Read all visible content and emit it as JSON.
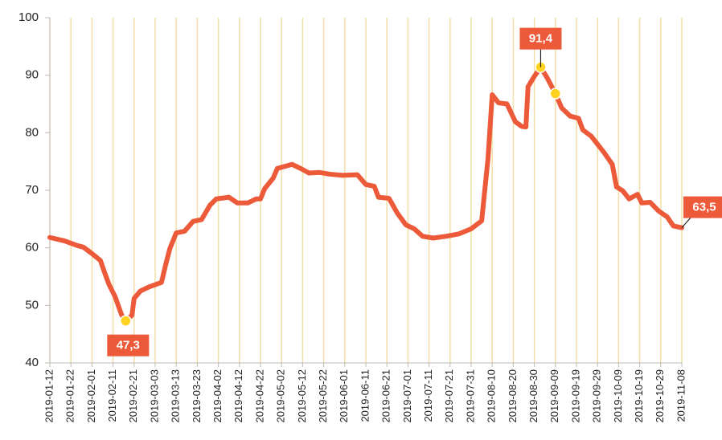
{
  "chart_data": {
    "type": "line",
    "xlim": [
      "2019-01-12",
      "2019-11-08"
    ],
    "xticks": [
      "2019-01-12",
      "2019-01-22",
      "2019-02-01",
      "2019-02-11",
      "2019-02-21",
      "2019-03-03",
      "2019-03-13",
      "2019-03-23",
      "2019-04-02",
      "2019-04-12",
      "2019-04-22",
      "2019-05-02",
      "2019-05-12",
      "2019-05-22",
      "2019-06-01",
      "2019-06-11",
      "2019-06-21",
      "2019-07-01",
      "2019-07-11",
      "2019-07-21",
      "2019-07-31",
      "2019-08-10",
      "2019-08-20",
      "2019-08-30",
      "2019-09-09",
      "2019-09-19",
      "2019-09-29",
      "2019-10-09",
      "2019-10-19",
      "2019-10-29",
      "2019-11-08"
    ],
    "ylim": [
      40,
      100
    ],
    "yticks": [
      40,
      50,
      60,
      70,
      80,
      90,
      100
    ],
    "grid": true,
    "grid_color": "#f2dfa6",
    "x": [
      "2019-01-12",
      "2019-01-19",
      "2019-01-25",
      "2019-01-28",
      "2019-02-01",
      "2019-02-05",
      "2019-02-07",
      "2019-02-09",
      "2019-02-12",
      "2019-02-15",
      "2019-02-17",
      "2019-02-20",
      "2019-02-21",
      "2019-02-24",
      "2019-02-28",
      "2019-03-06",
      "2019-03-08",
      "2019-03-10",
      "2019-03-13",
      "2019-03-17",
      "2019-03-21",
      "2019-03-25",
      "2019-03-29",
      "2019-04-01",
      "2019-04-07",
      "2019-04-11",
      "2019-04-16",
      "2019-04-20",
      "2019-04-22",
      "2019-04-24",
      "2019-04-28",
      "2019-04-30",
      "2019-05-04",
      "2019-05-07",
      "2019-05-11",
      "2019-05-15",
      "2019-05-20",
      "2019-05-25",
      "2019-05-31",
      "2019-06-07",
      "2019-06-11",
      "2019-06-15",
      "2019-06-17",
      "2019-06-22",
      "2019-06-26",
      "2019-06-30",
      "2019-07-04",
      "2019-07-08",
      "2019-07-13",
      "2019-07-19",
      "2019-07-25",
      "2019-07-31",
      "2019-08-05",
      "2019-08-08",
      "2019-08-10",
      "2019-08-13",
      "2019-08-17",
      "2019-08-21",
      "2019-08-24",
      "2019-08-26",
      "2019-08-27",
      "2019-08-30",
      "2019-09-02",
      "2019-09-05",
      "2019-09-09",
      "2019-09-12",
      "2019-09-16",
      "2019-09-20",
      "2019-09-22",
      "2019-09-26",
      "2019-10-02",
      "2019-10-06",
      "2019-10-08",
      "2019-10-11",
      "2019-10-14",
      "2019-10-18",
      "2019-10-20",
      "2019-10-24",
      "2019-10-28",
      "2019-11-01",
      "2019-11-04",
      "2019-11-08"
    ],
    "series": [
      {
        "color": "#ec5a3a",
        "values": [
          61.8,
          61.2,
          60.4,
          60.1,
          59.0,
          57.8,
          55.7,
          53.7,
          51.5,
          48.4,
          47.3,
          48.3,
          51.2,
          52.5,
          53.2,
          54.0,
          57.1,
          59.9,
          62.6,
          62.9,
          64.6,
          64.9,
          67.4,
          68.5,
          68.8,
          67.8,
          67.8,
          68.5,
          68.5,
          70.3,
          72.1,
          73.8,
          74.2,
          74.5,
          73.8,
          73.0,
          73.1,
          72.8,
          72.6,
          72.7,
          71.0,
          70.7,
          68.8,
          68.6,
          66.0,
          64.0,
          63.3,
          62.0,
          61.7,
          62.0,
          62.4,
          63.3,
          64.7,
          75.5,
          86.6,
          85.2,
          85.0,
          81.9,
          81.1,
          81.0,
          88.0,
          89.8,
          91.4,
          89.6,
          86.8,
          84.3,
          82.9,
          82.5,
          80.5,
          79.4,
          76.6,
          74.5,
          70.6,
          69.9,
          68.5,
          69.3,
          67.8,
          67.9,
          66.4,
          65.4,
          63.8,
          63.5
        ]
      }
    ],
    "markers": [
      {
        "x": "2019-02-17",
        "value": 47.3,
        "color": "#ffd21f"
      },
      {
        "x": "2019-09-02",
        "value": 91.4,
        "color": "#ffd21f"
      },
      {
        "x": "2019-09-09",
        "value": 86.8,
        "color": "#ffd21f"
      }
    ],
    "annotations": [
      {
        "x": "2019-02-17",
        "value": 47.3,
        "label": "47,3"
      },
      {
        "x": "2019-09-02",
        "value": 91.4,
        "label": "91,4"
      },
      {
        "x": "2019-11-08",
        "value": 63.5,
        "label": "63,5"
      }
    ]
  }
}
